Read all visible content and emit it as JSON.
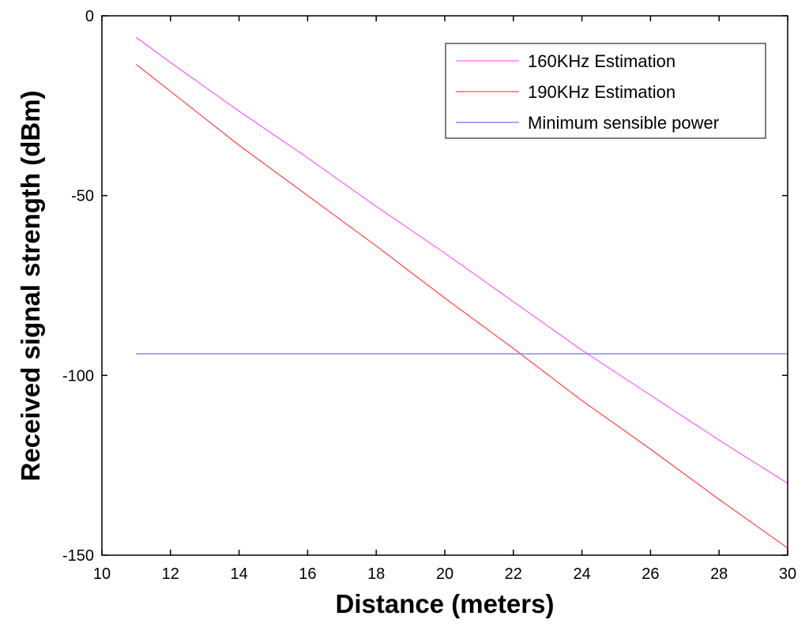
{
  "chart_data": {
    "type": "line",
    "title": "",
    "xlabel": "Distance (meters)",
    "ylabel": "Received signal strength (dBm)",
    "xlim": [
      10,
      30
    ],
    "ylim": [
      -150,
      0
    ],
    "xticks": [
      10,
      12,
      14,
      16,
      18,
      20,
      22,
      24,
      26,
      28,
      30
    ],
    "yticks": [
      0,
      -50,
      -100,
      -150
    ],
    "xtick_labels": [
      "10",
      "12",
      "14",
      "16",
      "18",
      "20",
      "22",
      "24",
      "26",
      "28",
      "30"
    ],
    "ytick_labels": [
      "0",
      "-50",
      "-100",
      "-150"
    ],
    "grid": false,
    "legend_position": "top-right",
    "series": [
      {
        "name": "160KHz Estimation",
        "color": "#ff66ff",
        "x": [
          11,
          12,
          14,
          16,
          18,
          20,
          22,
          24,
          26,
          28,
          30
        ],
        "y": [
          -6,
          -13,
          -26.5,
          -39.5,
          -53,
          -66,
          -79.5,
          -93,
          -105.5,
          -118,
          -130
        ]
      },
      {
        "name": "190KHz Estimation",
        "color": "#ff5050",
        "x": [
          11,
          12,
          14,
          16,
          18,
          20,
          22,
          24,
          26,
          28,
          30
        ],
        "y": [
          -13.5,
          -21,
          -36,
          -50,
          -64,
          -78.5,
          -92.5,
          -107,
          -120.5,
          -134.5,
          -148
        ]
      },
      {
        "name": "Minimum sensible power",
        "color": "#7070ff",
        "x": [
          11,
          30
        ],
        "y": [
          -94,
          -94
        ]
      }
    ]
  }
}
